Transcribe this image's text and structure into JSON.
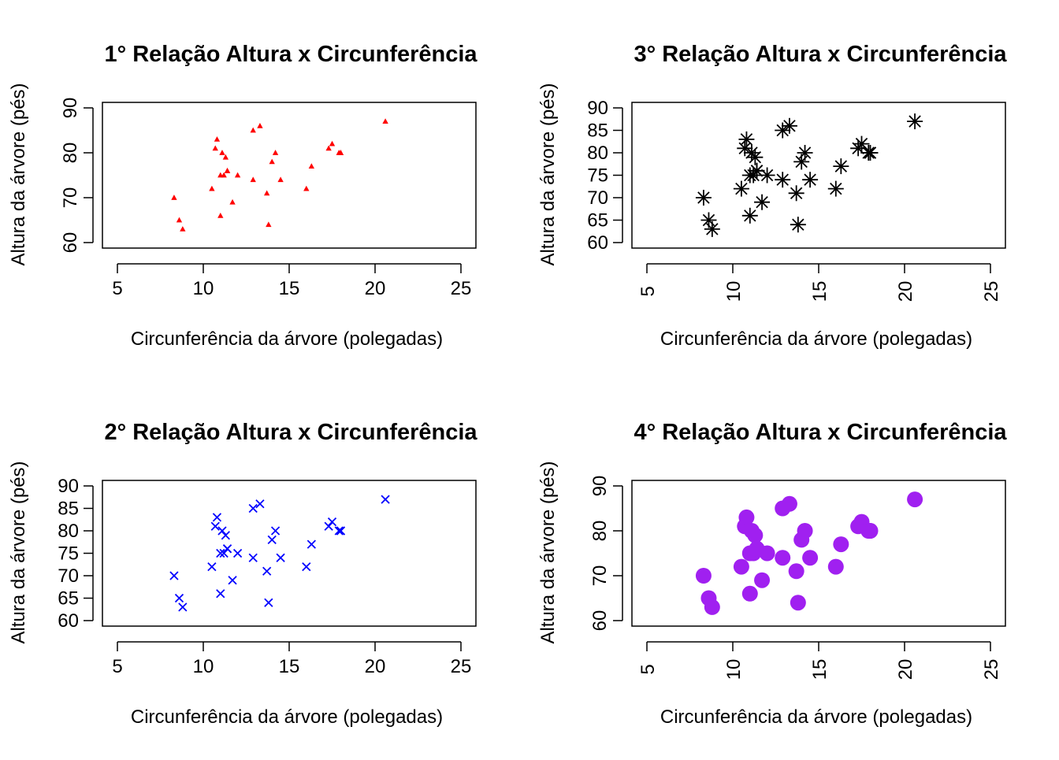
{
  "chart_data": [
    {
      "type": "scatter",
      "title": "1° Relação Altura x Circunferência",
      "xlabel": "Circunferência da árvore (polegadas)",
      "ylabel": "Altura da árvore (pés)",
      "xlim": [
        5,
        25
      ],
      "ylim": [
        60,
        90
      ],
      "xticks": [
        "5",
        "10",
        "15",
        "20",
        "25"
      ],
      "yticks": [
        "60",
        "70",
        "80",
        "90"
      ],
      "x_tick_orientation": "horizontal",
      "y_tick_orientation": "vertical",
      "marker": "small-filled-triangle",
      "color": "#FF0000",
      "grid": false,
      "legend": "none",
      "series": [
        {
          "x": [
            8.3,
            8.6,
            8.8,
            10.5,
            10.7,
            10.8,
            11.0,
            11.0,
            11.1,
            11.2,
            11.3,
            11.4,
            11.4,
            11.7,
            12.0,
            12.9,
            12.9,
            13.3,
            13.7,
            13.8,
            14.0,
            14.2,
            14.5,
            16.0,
            16.3,
            17.3,
            17.5,
            17.9,
            18.0,
            18.0,
            20.6
          ],
          "y": [
            70,
            65,
            63,
            72,
            81,
            83,
            66,
            75,
            80,
            75,
            79,
            76,
            76,
            69,
            75,
            74,
            85,
            86,
            71,
            64,
            78,
            80,
            74,
            72,
            77,
            81,
            82,
            80,
            80,
            80,
            87
          ]
        }
      ]
    },
    {
      "type": "scatter",
      "title": "3° Relação Altura x Circunferência",
      "xlabel": "Circunferência da árvore (polegadas)",
      "ylabel": "Altura da árvore (pés)",
      "xlim": [
        5,
        25
      ],
      "ylim": [
        60,
        90
      ],
      "xticks": [
        "5",
        "10",
        "15",
        "20",
        "25"
      ],
      "yticks": [
        "60",
        "65",
        "70",
        "75",
        "80",
        "85",
        "90"
      ],
      "x_tick_orientation": "vertical",
      "y_tick_orientation": "horizontal",
      "marker": "asterisk",
      "color": "#000000",
      "grid": false,
      "legend": "none",
      "series": [
        {
          "x": [
            8.3,
            8.6,
            8.8,
            10.5,
            10.7,
            10.8,
            11.0,
            11.0,
            11.1,
            11.2,
            11.3,
            11.4,
            11.4,
            11.7,
            12.0,
            12.9,
            12.9,
            13.3,
            13.7,
            13.8,
            14.0,
            14.2,
            14.5,
            16.0,
            16.3,
            17.3,
            17.5,
            17.9,
            18.0,
            18.0,
            20.6
          ],
          "y": [
            70,
            65,
            63,
            72,
            81,
            83,
            66,
            75,
            80,
            75,
            79,
            76,
            76,
            69,
            75,
            74,
            85,
            86,
            71,
            64,
            78,
            80,
            74,
            72,
            77,
            81,
            82,
            80,
            80,
            80,
            87
          ]
        }
      ]
    },
    {
      "type": "scatter",
      "title": "2° Relação Altura x Circunferência",
      "xlabel": "Circunferência da árvore (polegadas)",
      "ylabel": "Altura da árvore (pés)",
      "xlim": [
        5,
        25
      ],
      "ylim": [
        60,
        90
      ],
      "xticks": [
        "5",
        "10",
        "15",
        "20",
        "25"
      ],
      "yticks": [
        "60",
        "65",
        "70",
        "75",
        "80",
        "85",
        "90"
      ],
      "x_tick_orientation": "horizontal",
      "y_tick_orientation": "horizontal",
      "marker": "cross",
      "color": "#0000FF",
      "grid": false,
      "legend": "none",
      "series": [
        {
          "x": [
            8.3,
            8.6,
            8.8,
            10.5,
            10.7,
            10.8,
            11.0,
            11.0,
            11.1,
            11.2,
            11.3,
            11.4,
            11.4,
            11.7,
            12.0,
            12.9,
            12.9,
            13.3,
            13.7,
            13.8,
            14.0,
            14.2,
            14.5,
            16.0,
            16.3,
            17.3,
            17.5,
            17.9,
            18.0,
            18.0,
            20.6
          ],
          "y": [
            70,
            65,
            63,
            72,
            81,
            83,
            66,
            75,
            80,
            75,
            79,
            76,
            76,
            69,
            75,
            74,
            85,
            86,
            71,
            64,
            78,
            80,
            74,
            72,
            77,
            81,
            82,
            80,
            80,
            80,
            87
          ]
        }
      ]
    },
    {
      "type": "scatter",
      "title": "4° Relação Altura x Circunferência",
      "xlabel": "Circunferência da árvore (polegadas)",
      "ylabel": "Altura da árvore (pés)",
      "xlim": [
        5,
        25
      ],
      "ylim": [
        60,
        90
      ],
      "xticks": [
        "5",
        "10",
        "15",
        "20",
        "25"
      ],
      "yticks": [
        "60",
        "70",
        "80",
        "90"
      ],
      "x_tick_orientation": "vertical",
      "y_tick_orientation": "vertical",
      "marker": "large-filled-circle",
      "color": "#A020F0",
      "grid": false,
      "legend": "none",
      "series": [
        {
          "x": [
            8.3,
            8.6,
            8.8,
            10.5,
            10.7,
            10.8,
            11.0,
            11.0,
            11.1,
            11.2,
            11.3,
            11.4,
            11.4,
            11.7,
            12.0,
            12.9,
            12.9,
            13.3,
            13.7,
            13.8,
            14.0,
            14.2,
            14.5,
            16.0,
            16.3,
            17.3,
            17.5,
            17.9,
            18.0,
            18.0,
            20.6
          ],
          "y": [
            70,
            65,
            63,
            72,
            81,
            83,
            66,
            75,
            80,
            75,
            79,
            76,
            76,
            69,
            75,
            74,
            85,
            86,
            71,
            64,
            78,
            80,
            74,
            72,
            77,
            81,
            82,
            80,
            80,
            80,
            87
          ]
        }
      ]
    }
  ]
}
